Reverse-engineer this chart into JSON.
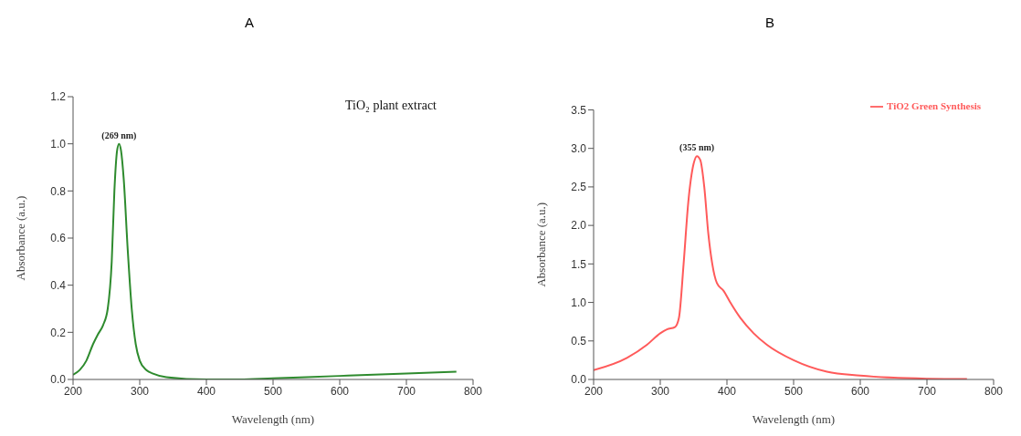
{
  "chart_data": [
    {
      "type": "line",
      "title": "A",
      "xlabel": "Wavelength (nm)",
      "ylabel": "Absorbance (a.u.)",
      "xlim": [
        200,
        800
      ],
      "xticks": [
        200,
        300,
        400,
        500,
        600,
        700,
        800
      ],
      "ylim": [
        0,
        1.2
      ],
      "yticks": [
        {
          "value": 0,
          "label": "0.0"
        },
        {
          "value": 0.2,
          "label": "0.2"
        },
        {
          "value": 0.4,
          "label": "0.4"
        },
        {
          "value": 0.6,
          "label": "0.6"
        },
        {
          "value": 0.8,
          "label": "0.8"
        },
        {
          "value": 1,
          "label": "1.0"
        },
        {
          "value": 1.2,
          "label": "1.2"
        }
      ],
      "grid": false,
      "legend": false,
      "marker": "none",
      "line_style": "solid",
      "annotations": [
        {
          "text": "(269 nm)",
          "x": 269,
          "y": 1.0
        },
        "TiO₂  plant extract"
      ],
      "series": [
        {
          "color": "#2e8b2e",
          "x": [
            200,
            210,
            220,
            230,
            237,
            245,
            252,
            258,
            262,
            266,
            269,
            272,
            276,
            282,
            288,
            294,
            300,
            310,
            320,
            340,
            400,
            450,
            500,
            600,
            700,
            775
          ],
          "values": [
            0.02,
            0.04,
            0.08,
            0.15,
            0.19,
            0.23,
            0.3,
            0.5,
            0.8,
            0.97,
            1.0,
            0.97,
            0.85,
            0.55,
            0.3,
            0.15,
            0.08,
            0.04,
            0.025,
            0.01,
            0.0,
            0.0,
            0.005,
            0.015,
            0.025,
            0.033
          ]
        }
      ]
    },
    {
      "type": "line",
      "title": "B",
      "xlabel": "Wavelength (nm)",
      "ylabel": "Absorbance (a.u.)",
      "xlim": [
        200,
        800
      ],
      "xticks": [
        200,
        300,
        400,
        500,
        600,
        700,
        800
      ],
      "ylim": [
        0,
        3.5
      ],
      "yticks": [
        {
          "value": 0,
          "label": "0.0"
        },
        {
          "value": 0.5,
          "label": "0.5"
        },
        {
          "value": 1,
          "label": "1.0"
        },
        {
          "value": 1.5,
          "label": "1.5"
        },
        {
          "value": 2,
          "label": "2.0"
        },
        {
          "value": 2.5,
          "label": "2.5"
        },
        {
          "value": 3,
          "label": "3.0"
        },
        {
          "value": 3.5,
          "label": "3.5"
        }
      ],
      "grid": false,
      "legend": "top right",
      "marker": "none",
      "line_style": "solid",
      "annotations": [
        {
          "text": "(355 nm)",
          "x": 355,
          "y": 2.9
        }
      ],
      "series": [
        {
          "name": "TiO2 Green Synthesis",
          "color": "#ff5a5a",
          "x": [
            200,
            250,
            280,
            300,
            310,
            322,
            328,
            335,
            342,
            350,
            355,
            360,
            366,
            372,
            378,
            385,
            395,
            405,
            420,
            440,
            460,
            500,
            550,
            600,
            700,
            760
          ],
          "values": [
            0.12,
            0.28,
            0.45,
            0.6,
            0.65,
            0.68,
            0.8,
            1.5,
            2.3,
            2.8,
            2.9,
            2.85,
            2.5,
            1.9,
            1.5,
            1.25,
            1.15,
            1.0,
            0.8,
            0.6,
            0.45,
            0.25,
            0.1,
            0.05,
            0.01,
            0.005
          ]
        }
      ]
    }
  ]
}
